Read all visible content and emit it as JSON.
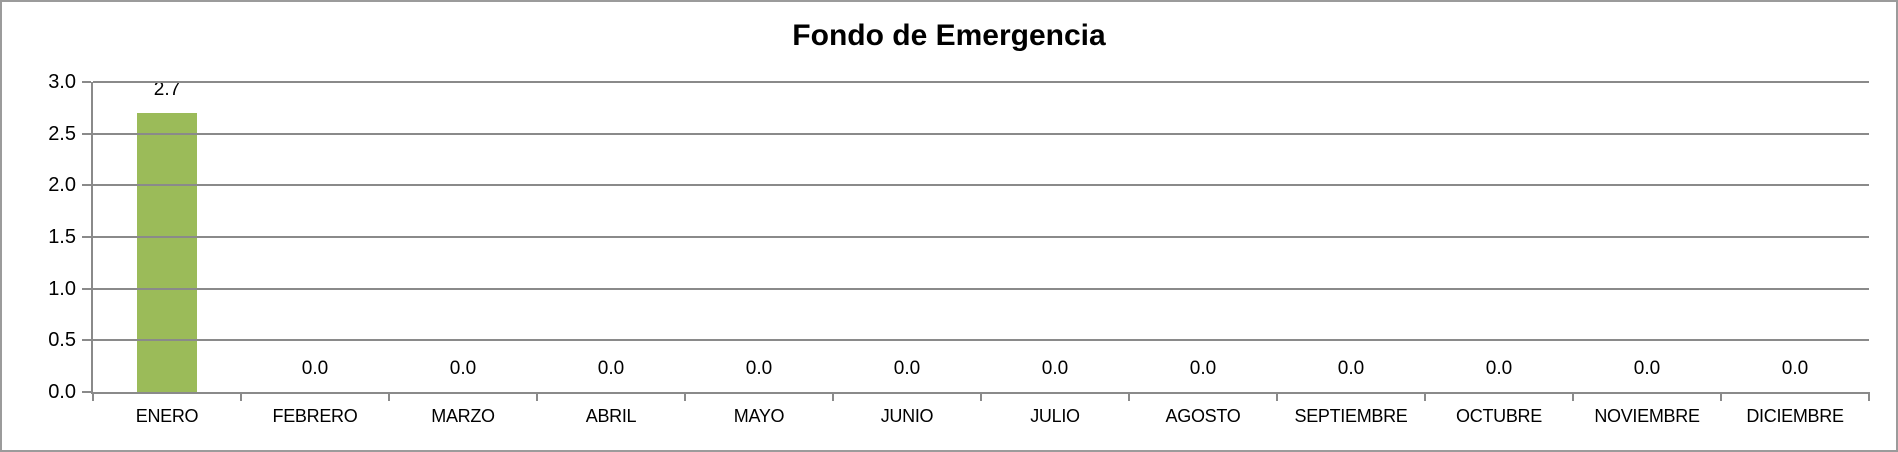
{
  "chart_data": {
    "type": "bar",
    "title": "Fondo de Emergencia",
    "categories": [
      "ENERO",
      "FEBRERO",
      "MARZO",
      "ABRIL",
      "MAYO",
      "JUNIO",
      "JULIO",
      "AGOSTO",
      "SEPTIEMBRE",
      "OCTUBRE",
      "NOVIEMBRE",
      "DICIEMBRE"
    ],
    "values": [
      2.7,
      0.0,
      0.0,
      0.0,
      0.0,
      0.0,
      0.0,
      0.0,
      0.0,
      0.0,
      0.0,
      0.0
    ],
    "data_labels": [
      "2.7",
      "0.0",
      "0.0",
      "0.0",
      "0.0",
      "0.0",
      "0.0",
      "0.0",
      "0.0",
      "0.0",
      "0.0",
      "0.0"
    ],
    "xlabel": "",
    "ylabel": "",
    "ylim": [
      0.0,
      3.0
    ],
    "ytick_step": 0.5,
    "ytick_labels": [
      "0.0",
      "0.5",
      "1.0",
      "1.5",
      "2.0",
      "2.5",
      "3.0"
    ],
    "grid": true,
    "legend_position": "none",
    "colors": {
      "bar": "#9BBB59",
      "gridline": "#8A8A8A",
      "axis": "#8A8A8A",
      "frame_border": "#9B9B9B",
      "text": "#000000",
      "background": "#FFFFFF"
    }
  }
}
